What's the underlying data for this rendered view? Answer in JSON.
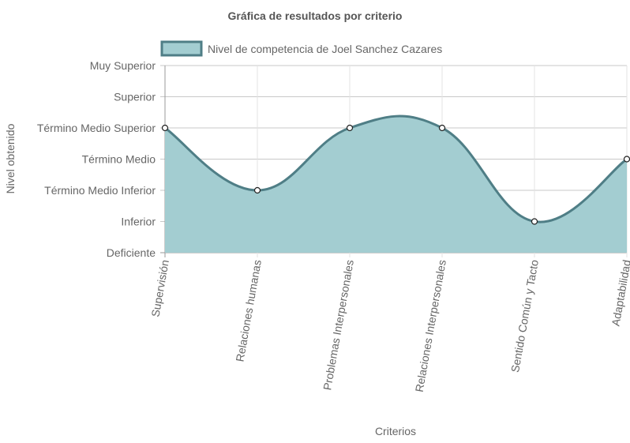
{
  "chart_data": {
    "type": "area",
    "title": "Gráfica de resultados por criterio",
    "xlabel": "Criterios",
    "ylabel": "Nivel obtenido",
    "categories": [
      "Supervisión",
      "Relaciones humanas",
      "Problemas Interpersonales",
      "Relaciones Interpersonales",
      "Sentido Común y Tacto",
      "Adaptabilidad"
    ],
    "y_levels": [
      "Deficiente",
      "Inferior",
      "Término Medio Inferior",
      "Término Medio",
      "Término Medio Superior",
      "Superior",
      "Muy Superior"
    ],
    "ylim": [
      0,
      6
    ],
    "grid": true,
    "legend_position": "top",
    "series": [
      {
        "name": "Nivel de competencia de Joel Sanchez Cazares",
        "values": [
          4,
          2,
          4,
          4,
          1,
          3
        ],
        "fill_color": "#a3cdd1",
        "line_color": "#4f7e86"
      }
    ]
  }
}
